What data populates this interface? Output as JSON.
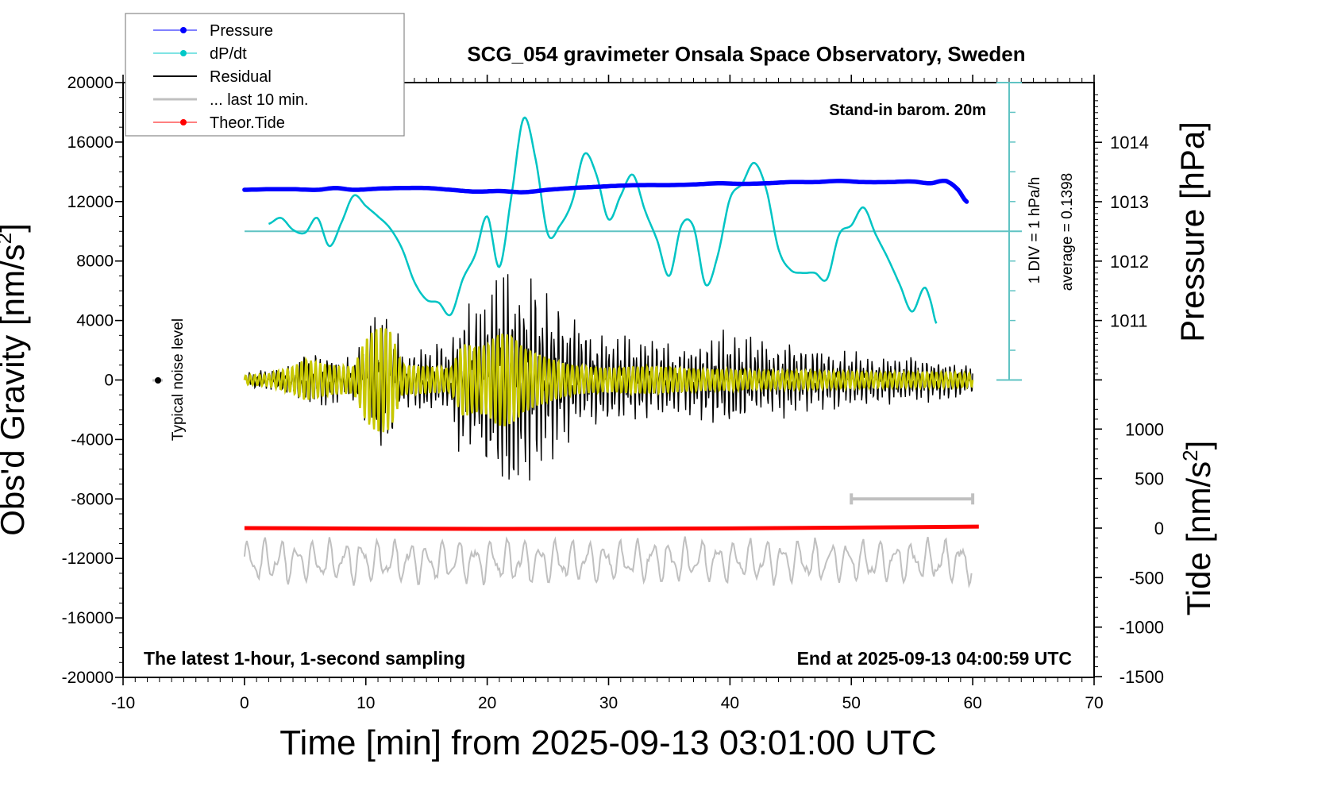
{
  "chart_data": {
    "type": "line",
    "title": "SCG_054 gravimeter Onsala Space Observatory, Sweden",
    "xlabel": "Time [min] from 2025-09-13 03:01:00 UTC",
    "ylabel_left": "Obs'd Gravity [nm/s",
    "ylabel_left_sup": "2",
    "ylabel_left_close": "]",
    "ylabel_right_pressure": "Pressure [hPa]",
    "ylabel_right_tide": "Tide [nm/s",
    "ylabel_right_tide_sup": "2",
    "ylabel_right_tide_close": "]",
    "xlim": [
      -10,
      70
    ],
    "ylim_left": [
      -20000,
      20000
    ],
    "ylim_pressure": [
      1010,
      1015
    ],
    "ylim_tide": [
      -1500,
      1500
    ],
    "x_ticks": [
      "-10",
      "0",
      "10",
      "20",
      "30",
      "40",
      "50",
      "60",
      "70"
    ],
    "y_left_ticks": [
      "20000",
      "16000",
      "12000",
      "8000",
      "4000",
      "0",
      "-4000",
      "-8000",
      "-12000",
      "-16000",
      "-20000"
    ],
    "y_pressure_ticks": [
      "1014",
      "1013",
      "1012",
      "1011"
    ],
    "y_tide_ticks": [
      "1000",
      "500",
      "0",
      "-500",
      "-1000",
      "-1500"
    ],
    "annotations": {
      "stand_in": "Stand-in barom. 20m",
      "div_label": "1 DIV = 1 hPa/h",
      "average_label": "average = 0.1398",
      "noise_label": "Typical noise level",
      "latest": "The latest 1-hour, 1-second sampling",
      "end_at": "End at 2025-09-13 04:00:59 UTC"
    },
    "legend": {
      "position": "top-left",
      "entries": [
        {
          "label": "Pressure",
          "color": "#0000ff",
          "marker": true
        },
        {
          "label": "dP/dt",
          "color": "#00c8c8",
          "marker": true
        },
        {
          "label": "Residual",
          "color": "#000000",
          "marker": false
        },
        {
          "label": "... last 10 min.",
          "color": "#c0c0c0",
          "marker": false
        },
        {
          "label": "Theor.Tide",
          "color": "#ff0000",
          "marker": true
        }
      ]
    },
    "series": [
      {
        "name": "Pressure",
        "axis": "pressure",
        "color": "#0000ff",
        "x": [
          0,
          2,
          4,
          6,
          7.5,
          9,
          11,
          13,
          15,
          17,
          19,
          21,
          23,
          25,
          27,
          29,
          31,
          33,
          35,
          37,
          39,
          41,
          43,
          45,
          47,
          49,
          51,
          53,
          55,
          56.5,
          57.5,
          58,
          58.8,
          59.5
        ],
        "values": [
          1013.2,
          1013.21,
          1013.21,
          1013.2,
          1013.23,
          1013.2,
          1013.22,
          1013.23,
          1013.23,
          1013.2,
          1013.17,
          1013.18,
          1013.16,
          1013.2,
          1013.23,
          1013.25,
          1013.27,
          1013.28,
          1013.28,
          1013.29,
          1013.31,
          1013.3,
          1013.31,
          1013.33,
          1013.33,
          1013.35,
          1013.33,
          1013.33,
          1013.34,
          1013.31,
          1013.35,
          1013.33,
          1013.2,
          1013.0
        ]
      },
      {
        "name": "dP/dt",
        "axis": "dpdt",
        "color": "#00c8c8",
        "unit_note": "1 DIV = 1 hPa/h, zero line at left value 10000",
        "x": [
          2,
          3,
          4,
          5,
          6,
          7,
          8,
          9,
          10,
          11,
          12,
          13,
          14,
          15,
          16,
          17,
          18,
          19,
          20,
          21,
          22,
          23,
          24,
          25,
          26,
          27,
          28,
          29,
          30,
          31,
          32,
          33,
          34,
          35,
          36,
          37,
          38,
          39,
          40,
          41,
          42,
          43,
          44,
          45,
          46,
          47,
          48,
          49,
          50,
          51,
          52,
          53,
          54,
          55,
          56,
          56.5,
          57
        ],
        "values": [
          0.25,
          0.45,
          0.05,
          -0.05,
          0.45,
          -0.5,
          0.3,
          1.2,
          0.85,
          0.5,
          0.1,
          -0.6,
          -1.7,
          -2.3,
          -2.4,
          -2.8,
          -1.6,
          -0.8,
          0.5,
          -1.2,
          1.2,
          3.8,
          2.4,
          -0.1,
          0.2,
          1.0,
          2.6,
          1.9,
          0.4,
          1.2,
          1.9,
          0.7,
          -0.3,
          -1.5,
          0.2,
          0.15,
          -1.8,
          -0.8,
          1.1,
          1.6,
          2.3,
          1.4,
          -0.6,
          -1.3,
          -1.4,
          -1.4,
          -1.6,
          -0.1,
          0.2,
          0.8,
          -0.1,
          -0.9,
          -1.8,
          -2.7,
          -1.9,
          -2.3,
          -3.1
        ]
      },
      {
        "name": "Residual",
        "axis": "left",
        "color": "#000000",
        "envelope_x": [
          0,
          2,
          4,
          5,
          7,
          9,
          10,
          11,
          12,
          13,
          15,
          17,
          18,
          19,
          20,
          21,
          22,
          23,
          24,
          25,
          26,
          27,
          28,
          30,
          32,
          34,
          36,
          38,
          40,
          42,
          44,
          46,
          48,
          50,
          52,
          54,
          56,
          58,
          60
        ],
        "envelope_amplitude": [
          500,
          800,
          1200,
          2000,
          2000,
          1500,
          3500,
          5000,
          4800,
          2200,
          2500,
          3000,
          5800,
          5500,
          7000,
          9000,
          9500,
          8000,
          7500,
          6500,
          5500,
          4500,
          4000,
          3000,
          3200,
          2800,
          2600,
          3000,
          3800,
          2800,
          2600,
          2400,
          2200,
          2000,
          1900,
          1800,
          1700,
          1600,
          1200
        ]
      },
      {
        "name": "Filtered residual",
        "axis": "left",
        "color": "#c8c800",
        "envelope_x": [
          0,
          2,
          4,
          5,
          7,
          9,
          10,
          11,
          12,
          13,
          15,
          17,
          18,
          19,
          20,
          21,
          22,
          23,
          24,
          25,
          26,
          27,
          28,
          30,
          32,
          34,
          36,
          38,
          40,
          42,
          44,
          46,
          48,
          50,
          52,
          54,
          56,
          58,
          60
        ],
        "envelope_amplitude": [
          300,
          400,
          900,
          1400,
          1000,
          900,
          2800,
          3600,
          3400,
          1000,
          900,
          800,
          2500,
          2200,
          2400,
          3200,
          3000,
          2200,
          1800,
          1500,
          1200,
          1000,
          900,
          800,
          900,
          900,
          800,
          700,
          700,
          600,
          600,
          600,
          550,
          550,
          500,
          500,
          500,
          500,
          450
        ]
      },
      {
        "name": "... last 10 min.",
        "axis": "left",
        "color": "#c0c0c0",
        "offset": -12000,
        "amplitude": 2000
      },
      {
        "name": "Theor.Tide",
        "axis": "tide",
        "color": "#ff0000",
        "x": [
          0,
          10,
          20,
          30,
          40,
          50,
          60.5
        ],
        "values": [
          0,
          -5,
          -8,
          -7,
          -3,
          5,
          15
        ]
      }
    ],
    "scale_bar_minutes": [
      50,
      60
    ],
    "scale_bar_value": 8000,
    "noise_level_point": {
      "x": -7,
      "y": 0
    }
  }
}
